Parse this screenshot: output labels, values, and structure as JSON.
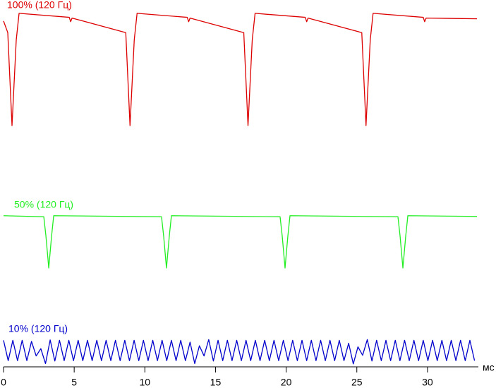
{
  "chart_data": {
    "type": "line",
    "xlabel": "мс",
    "xlim": [
      0,
      33.6
    ],
    "xticks": [
      0,
      5,
      10,
      15,
      20,
      25,
      30
    ],
    "ylim": [
      0,
      100
    ],
    "series": [
      {
        "name": "100% (120 Гц)",
        "color": "#dd0000",
        "x": [
          0,
          0.3,
          0.6,
          0.9,
          1.1,
          4.65,
          4.75,
          4.85,
          8.65,
          8.95,
          9.25,
          9.45,
          13.0,
          13.1,
          13.2,
          17.0,
          17.3,
          17.6,
          17.8,
          21.35,
          21.45,
          21.55,
          25.35,
          25.65,
          25.95,
          26.15,
          29.7,
          29.8,
          29.9,
          33.5
        ],
        "values": [
          95.2,
          92,
          66.4,
          90,
          97.3,
          96.2,
          95.0,
          96.0,
          92,
          66.4,
          90,
          97.3,
          96.2,
          95.0,
          96.0,
          92,
          66.4,
          90,
          97.3,
          96.2,
          95.0,
          96.0,
          92,
          66.4,
          90,
          97.3,
          96.2,
          95.0,
          96.0,
          95.8
        ]
      },
      {
        "name": "50% (120 Гц)",
        "color": "#22ee22",
        "x": [
          0,
          2.85,
          3.0,
          3.2,
          3.4,
          3.55,
          11.18,
          11.33,
          11.53,
          11.73,
          11.88,
          19.57,
          19.72,
          19.92,
          20.12,
          20.27,
          27.91,
          28.06,
          28.26,
          28.46,
          28.61,
          33.5
        ],
        "values": [
          41.6,
          41.3,
          36,
          27.2,
          36,
          41.6,
          41.3,
          36,
          27.2,
          36,
          41.6,
          41.3,
          36,
          27.2,
          36,
          41.6,
          41.3,
          36,
          27.2,
          36,
          41.6,
          41.4
        ]
      },
      {
        "name": "10% (120 Гц)",
        "color": "#0000cc",
        "x": [
          0,
          0.33,
          0.66,
          0.99,
          1.32,
          1.65,
          1.98,
          2.31,
          2.64,
          2.97,
          3.3,
          3.63,
          3.96,
          4.29,
          4.62,
          4.95,
          5.28,
          5.61,
          5.94,
          6.27,
          6.6,
          6.93,
          7.26,
          7.59,
          7.92,
          8.25,
          8.58,
          8.91,
          9.24,
          9.57,
          9.9,
          10.23,
          10.56,
          10.89,
          11.22,
          11.55,
          11.88,
          12.21,
          12.54,
          12.87,
          13.2,
          13.53,
          13.86,
          14.19,
          14.52,
          14.85,
          15.18,
          15.51,
          15.84,
          16.17,
          16.5,
          16.83,
          17.16,
          17.49,
          17.82,
          18.15,
          18.48,
          18.81,
          19.14,
          19.47,
          19.8,
          20.13,
          20.46,
          20.79,
          21.12,
          21.45,
          21.78,
          22.11,
          22.44,
          22.77,
          23.1,
          23.43,
          23.76,
          24.09,
          24.42,
          24.75,
          25.08,
          25.41,
          25.74,
          26.07,
          26.4,
          26.73,
          27.06,
          27.39,
          27.72,
          28.05,
          28.38,
          28.71,
          29.04,
          29.37,
          29.7,
          30.03,
          30.36,
          30.69,
          31.02,
          31.35,
          31.68,
          32.01,
          32.34,
          32.67,
          33.0,
          33.33
        ],
        "values": [
          7.3,
          1.7,
          7.3,
          1.7,
          7.3,
          1.7,
          7.0,
          3.0,
          5.0,
          0.9,
          7.4,
          1.6,
          7.3,
          1.7,
          7.3,
          1.7,
          7.3,
          1.7,
          7.3,
          1.7,
          7.3,
          1.7,
          7.3,
          1.7,
          7.3,
          1.7,
          7.3,
          1.7,
          7.3,
          1.7,
          7.3,
          1.7,
          7.3,
          1.7,
          7.3,
          1.7,
          7.3,
          1.7,
          7.3,
          1.7,
          6.8,
          0.9,
          5.8,
          3.0,
          7.5,
          1.6,
          7.3,
          1.7,
          7.3,
          1.7,
          7.3,
          1.7,
          7.3,
          1.7,
          7.3,
          1.7,
          7.3,
          1.7,
          7.3,
          1.7,
          7.3,
          1.7,
          7.3,
          1.7,
          7.3,
          1.7,
          7.3,
          1.7,
          7.3,
          1.7,
          7.3,
          1.7,
          7.3,
          1.7,
          6.5,
          0.8,
          5.5,
          3.2,
          7.5,
          1.6,
          7.3,
          1.7,
          7.3,
          1.7,
          7.3,
          1.7,
          7.3,
          1.7,
          7.3,
          1.7,
          7.3,
          1.7,
          7.3,
          1.7,
          7.3,
          1.7,
          7.3,
          1.7,
          7.3,
          1.7,
          7.3,
          1.7
        ]
      }
    ]
  }
}
